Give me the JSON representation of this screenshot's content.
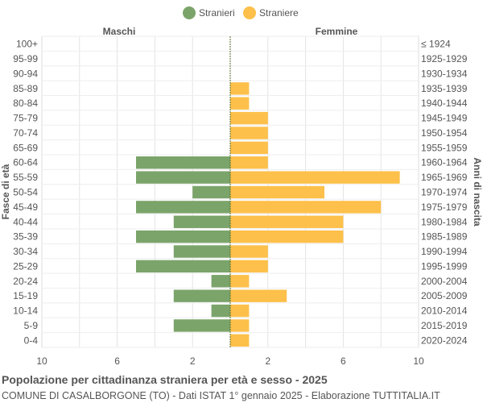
{
  "chart_data": {
    "type": "bar",
    "orientation": "horizontal-pyramid",
    "title": "Popolazione per cittadinanza straniera per età e sesso - 2025",
    "subtitle": "COMUNE DI CASALBORGONE (TO) - Dati ISTAT 1° gennaio 2025 - Elaborazione TUTTITALIA.IT",
    "left_header": "Maschi",
    "right_header": "Femmine",
    "ylabel_left": "Fasce di età",
    "ylabel_right": "Anni di nascita",
    "xlim": [
      0,
      10
    ],
    "xticks": [
      "10",
      "6",
      "2",
      "2",
      "6",
      "10"
    ],
    "grid": true,
    "legend_position": "top",
    "categories": [
      "100+",
      "95-99",
      "90-94",
      "85-89",
      "80-84",
      "75-79",
      "70-74",
      "65-69",
      "60-64",
      "55-59",
      "50-54",
      "45-49",
      "40-44",
      "35-39",
      "30-34",
      "25-29",
      "20-24",
      "15-19",
      "10-14",
      "5-9",
      "0-4"
    ],
    "birth_years": [
      "≤ 1924",
      "1925-1929",
      "1930-1934",
      "1935-1939",
      "1940-1944",
      "1945-1949",
      "1950-1954",
      "1955-1959",
      "1960-1964",
      "1965-1969",
      "1970-1974",
      "1975-1979",
      "1980-1984",
      "1985-1989",
      "1990-1994",
      "1995-1999",
      "2000-2004",
      "2005-2009",
      "2010-2014",
      "2015-2019",
      "2020-2024"
    ],
    "series": [
      {
        "name": "Stranieri",
        "color": "#7ba46a",
        "values": [
          0,
          0,
          0,
          0,
          0,
          0,
          0,
          0,
          5,
          5,
          2,
          5,
          3,
          5,
          3,
          5,
          1,
          3,
          1,
          3,
          0
        ]
      },
      {
        "name": "Straniere",
        "color": "#fdc04a",
        "values": [
          0,
          0,
          0,
          1,
          1,
          2,
          2,
          2,
          2,
          9,
          5,
          8,
          6,
          6,
          2,
          2,
          1,
          3,
          1,
          1,
          1
        ]
      }
    ]
  }
}
